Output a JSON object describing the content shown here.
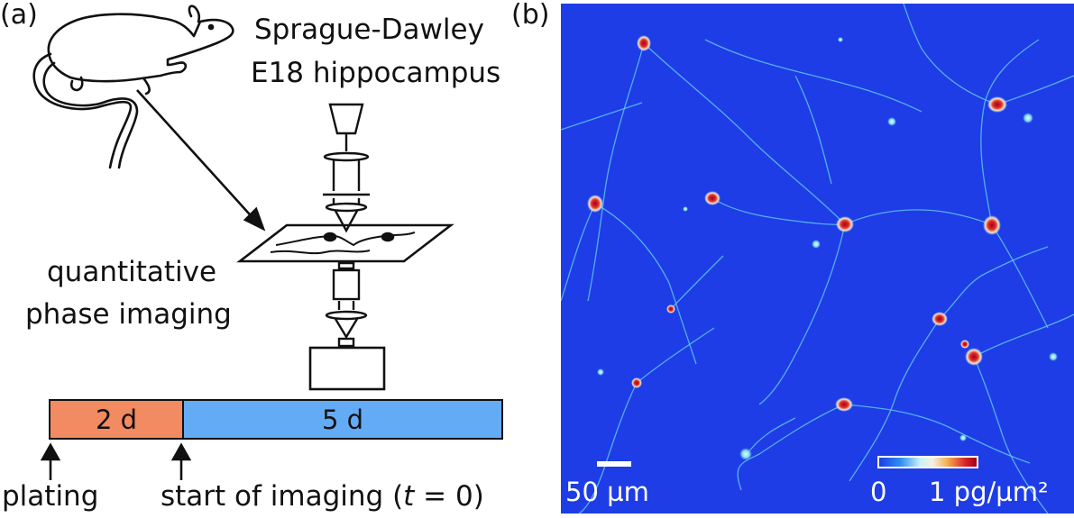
{
  "panel_a": {
    "label": "(a)",
    "subject_line1": "Sprague-Dawley",
    "subject_line2": "E18 hippocampus",
    "method_line1": "quantitative",
    "method_line2": "phase imaging",
    "timeline": {
      "phase1_label": "2 d",
      "phase2_label": "5 d",
      "event1_label": "plating",
      "event2_prefix": "start of imaging (",
      "event2_var": "t",
      "event2_suffix": " = 0)"
    },
    "colors": {
      "phase1": "#f28a62",
      "phase2": "#64abf5"
    }
  },
  "panel_b": {
    "label": "(b)",
    "scale_label": "50 µm",
    "colorbar_min": "0",
    "colorbar_max": "1 pg/µm²",
    "colors": {
      "background": "#1e3de6",
      "high": "#d9262a"
    }
  }
}
